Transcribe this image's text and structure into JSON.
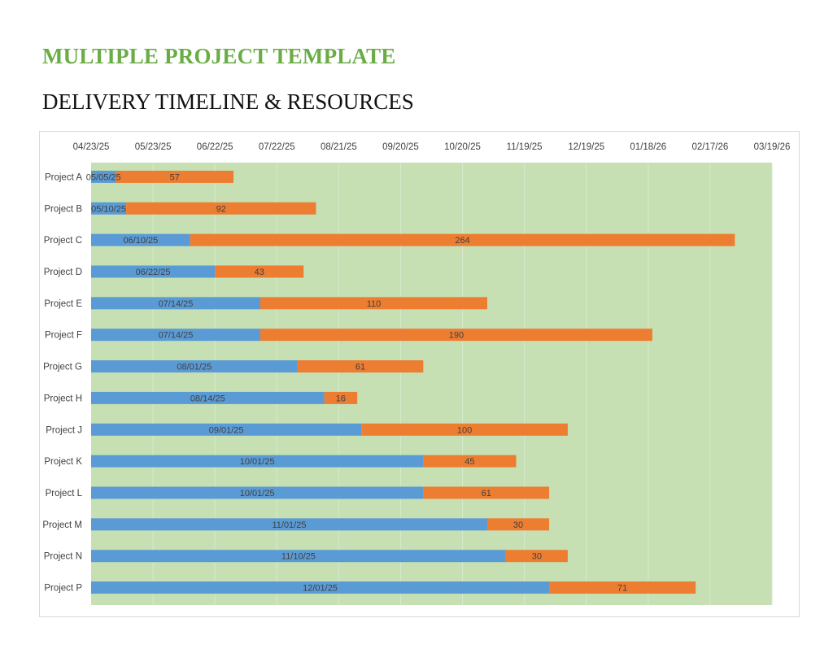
{
  "header": {
    "title": "MULTIPLE PROJECT TEMPLATE",
    "subtitle": "DELIVERY TIMELINE & RESOURCES"
  },
  "colors": {
    "title": "#6aad45",
    "plot_background": "#c6e0b4",
    "start_bar": "#5b9bd5",
    "duration_bar": "#ed7d31",
    "gridline": "#d6e9cb",
    "text": "#404040"
  },
  "chart_data": {
    "type": "bar",
    "orientation": "horizontal",
    "stacked": true,
    "x_axis_position": "top",
    "grid": true,
    "xlim_date": [
      "2025-04-23",
      "2026-04-07"
    ],
    "x_ticks": [
      "04/23/25",
      "05/23/25",
      "06/22/25",
      "07/22/25",
      "08/21/25",
      "09/20/25",
      "10/20/25",
      "11/19/25",
      "12/19/25",
      "01/18/26",
      "02/17/26",
      "03/19/26"
    ],
    "x_tick_dates": [
      "2025-04-23",
      "2025-05-23",
      "2025-06-22",
      "2025-07-22",
      "2025-08-21",
      "2025-09-20",
      "2025-10-20",
      "2025-11-19",
      "2025-12-19",
      "2026-01-18",
      "2026-02-17",
      "2026-03-19"
    ],
    "categories": [
      "Project A",
      "Project B",
      "Project C",
      "Project D",
      "Project E",
      "Project F",
      "Project G",
      "Project H",
      "Project J",
      "Project K",
      "Project L",
      "Project M",
      "Project N",
      "Project P"
    ],
    "start_dates": [
      "2025-05-05",
      "2025-05-10",
      "2025-06-10",
      "2025-06-22",
      "2025-07-14",
      "2025-07-14",
      "2025-08-01",
      "2025-08-14",
      "2025-09-01",
      "2025-10-01",
      "2025-10-01",
      "2025-11-01",
      "2025-11-10",
      "2025-12-01"
    ],
    "start_labels": [
      "05/05/25",
      "05/10/25",
      "06/10/25",
      "06/22/25",
      "07/14/25",
      "07/14/25",
      "08/01/25",
      "08/14/25",
      "09/01/25",
      "10/01/25",
      "10/01/25",
      "11/01/25",
      "11/10/25",
      "12/01/25"
    ],
    "durations": [
      57,
      92,
      264,
      43,
      110,
      190,
      61,
      16,
      100,
      45,
      61,
      30,
      30,
      71
    ]
  }
}
